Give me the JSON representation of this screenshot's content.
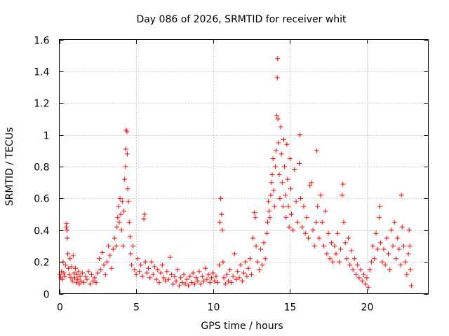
{
  "chart_data": {
    "type": "scatter",
    "title": "Day 086 of 2026, SRMTID for receiver whit",
    "xlabel": "GPS time / hours",
    "ylabel": "SRMTID / TECUs",
    "xlim": [
      0,
      24
    ],
    "ylim": [
      0,
      1.6
    ],
    "xticks": [
      0,
      5,
      10,
      15,
      20
    ],
    "xtick_labels": [
      "0",
      "5",
      "10",
      "15",
      "20"
    ],
    "yticks": [
      0,
      0.2,
      0.4,
      0.6,
      0.8,
      1,
      1.2,
      1.4,
      1.6
    ],
    "ytick_labels": [
      "0",
      "0.2",
      "0.4",
      "0.6",
      "0.8",
      "1",
      "1.2",
      "1.4",
      "1.6"
    ],
    "grid": true,
    "marker": "+",
    "color": "#ff0000",
    "series": [
      {
        "name": "SRMTID",
        "points": [
          [
            0.05,
            0.12
          ],
          [
            0.1,
            0.1
          ],
          [
            0.15,
            0.14
          ],
          [
            0.2,
            0.09
          ],
          [
            0.25,
            0.2
          ],
          [
            0.3,
            0.13
          ],
          [
            0.35,
            0.11
          ],
          [
            0.4,
            0.18
          ],
          [
            0.45,
            0.42
          ],
          [
            0.48,
            0.44
          ],
          [
            0.5,
            0.4
          ],
          [
            0.52,
            0.35
          ],
          [
            0.55,
            0.25
          ],
          [
            0.6,
            0.16
          ],
          [
            0.65,
            0.12
          ],
          [
            0.7,
            0.22
          ],
          [
            0.75,
            0.1
          ],
          [
            0.8,
            0.17
          ],
          [
            0.85,
            0.08
          ],
          [
            0.9,
            0.24
          ],
          [
            0.95,
            0.13
          ],
          [
            1.0,
            0.1
          ],
          [
            1.05,
            0.16
          ],
          [
            1.1,
            0.07
          ],
          [
            1.15,
            0.12
          ],
          [
            1.2,
            0.09
          ],
          [
            1.25,
            0.14
          ],
          [
            1.3,
            0.06
          ],
          [
            1.35,
            0.11
          ],
          [
            1.4,
            0.08
          ],
          [
            1.5,
            0.13
          ],
          [
            1.6,
            0.07
          ],
          [
            1.7,
            0.11
          ],
          [
            1.8,
            0.09
          ],
          [
            1.9,
            0.14
          ],
          [
            2.0,
            0.06
          ],
          [
            2.1,
            0.12
          ],
          [
            2.2,
            0.08
          ],
          [
            2.3,
            0.1
          ],
          [
            2.4,
            0.07
          ],
          [
            2.5,
            0.13
          ],
          [
            2.6,
            0.22
          ],
          [
            2.7,
            0.15
          ],
          [
            2.8,
            0.26
          ],
          [
            2.9,
            0.18
          ],
          [
            3.0,
            0.12
          ],
          [
            3.1,
            0.2
          ],
          [
            3.2,
            0.3
          ],
          [
            3.3,
            0.24
          ],
          [
            3.4,
            0.16
          ],
          [
            3.5,
            0.28
          ],
          [
            3.6,
            0.35
          ],
          [
            3.7,
            0.3
          ],
          [
            3.75,
            0.42
          ],
          [
            3.8,
            0.48
          ],
          [
            3.85,
            0.55
          ],
          [
            3.9,
            0.45
          ],
          [
            3.95,
            0.6
          ],
          [
            4.0,
            0.5
          ],
          [
            4.05,
            0.4
          ],
          [
            4.1,
            0.58
          ],
          [
            4.15,
            0.3
          ],
          [
            4.2,
            0.52
          ],
          [
            4.25,
            0.72
          ],
          [
            4.3,
            0.8
          ],
          [
            4.32,
            0.91
          ],
          [
            4.35,
            1.03
          ],
          [
            4.4,
            1.02
          ],
          [
            4.42,
            0.88
          ],
          [
            4.45,
            0.66
          ],
          [
            4.5,
            0.58
          ],
          [
            4.55,
            0.45
          ],
          [
            4.6,
            0.36
          ],
          [
            4.65,
            0.25
          ],
          [
            4.7,
            0.18
          ],
          [
            4.8,
            0.3
          ],
          [
            4.9,
            0.15
          ],
          [
            5.0,
            0.12
          ],
          [
            5.1,
            0.22
          ],
          [
            5.2,
            0.14
          ],
          [
            5.3,
            0.18
          ],
          [
            5.4,
            0.11
          ],
          [
            5.5,
            0.47
          ],
          [
            5.55,
            0.5
          ],
          [
            5.6,
            0.2
          ],
          [
            5.7,
            0.13
          ],
          [
            5.8,
            0.16
          ],
          [
            5.9,
            0.1
          ],
          [
            6.0,
            0.2
          ],
          [
            6.1,
            0.12
          ],
          [
            6.2,
            0.17
          ],
          [
            6.3,
            0.09
          ],
          [
            6.4,
            0.15
          ],
          [
            6.5,
            0.07
          ],
          [
            6.6,
            0.13
          ],
          [
            6.7,
            0.18
          ],
          [
            6.8,
            0.1
          ],
          [
            6.9,
            0.08
          ],
          [
            7.0,
            0.14
          ],
          [
            7.1,
            0.09
          ],
          [
            7.2,
            0.23
          ],
          [
            7.3,
            0.12
          ],
          [
            7.4,
            0.06
          ],
          [
            7.5,
            0.11
          ],
          [
            7.6,
            0.08
          ],
          [
            7.7,
            0.15
          ],
          [
            7.8,
            0.05
          ],
          [
            7.9,
            0.1
          ],
          [
            8.0,
            0.07
          ],
          [
            8.1,
            0.12
          ],
          [
            8.2,
            0.06
          ],
          [
            8.3,
            0.09
          ],
          [
            8.4,
            0.05
          ],
          [
            8.5,
            0.11
          ],
          [
            8.6,
            0.07
          ],
          [
            8.7,
            0.13
          ],
          [
            8.8,
            0.06
          ],
          [
            8.9,
            0.1
          ],
          [
            9.0,
            0.08
          ],
          [
            9.1,
            0.14
          ],
          [
            9.2,
            0.06
          ],
          [
            9.3,
            0.11
          ],
          [
            9.4,
            0.08
          ],
          [
            9.5,
            0.16
          ],
          [
            9.6,
            0.09
          ],
          [
            9.7,
            0.12
          ],
          [
            9.8,
            0.07
          ],
          [
            9.9,
            0.1
          ],
          [
            10.0,
            0.13
          ],
          [
            10.1,
            0.08
          ],
          [
            10.2,
            0.11
          ],
          [
            10.3,
            0.07
          ],
          [
            10.4,
            0.18
          ],
          [
            10.45,
            0.45
          ],
          [
            10.5,
            0.6
          ],
          [
            10.55,
            0.5
          ],
          [
            10.6,
            0.4
          ],
          [
            10.65,
            0.2
          ],
          [
            10.7,
            0.1
          ],
          [
            10.8,
            0.06
          ],
          [
            10.9,
            0.12
          ],
          [
            11.0,
            0.08
          ],
          [
            11.1,
            0.15
          ],
          [
            11.2,
            0.07
          ],
          [
            11.3,
            0.11
          ],
          [
            11.4,
            0.25
          ],
          [
            11.5,
            0.09
          ],
          [
            11.6,
            0.14
          ],
          [
            11.7,
            0.1
          ],
          [
            11.8,
            0.18
          ],
          [
            11.9,
            0.08
          ],
          [
            12.0,
            0.13
          ],
          [
            12.1,
            0.2
          ],
          [
            12.2,
            0.11
          ],
          [
            12.3,
            0.16
          ],
          [
            12.4,
            0.22
          ],
          [
            12.5,
            0.12
          ],
          [
            12.6,
            0.35
          ],
          [
            12.7,
            0.51
          ],
          [
            12.75,
            0.48
          ],
          [
            12.8,
            0.3
          ],
          [
            12.9,
            0.2
          ],
          [
            13.0,
            0.15
          ],
          [
            13.1,
            0.28
          ],
          [
            13.2,
            0.18
          ],
          [
            13.3,
            0.32
          ],
          [
            13.4,
            0.22
          ],
          [
            13.5,
            0.38
          ],
          [
            13.55,
            0.45
          ],
          [
            13.6,
            0.58
          ],
          [
            13.65,
            0.52
          ],
          [
            13.7,
            0.48
          ],
          [
            13.75,
            0.62
          ],
          [
            13.8,
            0.7
          ],
          [
            13.85,
            0.75
          ],
          [
            13.9,
            0.85
          ],
          [
            13.95,
            0.65
          ],
          [
            14.0,
            0.55
          ],
          [
            14.05,
            0.8
          ],
          [
            14.1,
            0.9
          ],
          [
            14.15,
            1.12
          ],
          [
            14.18,
            1.36
          ],
          [
            14.2,
            1.48
          ],
          [
            14.22,
            1.1
          ],
          [
            14.25,
            0.95
          ],
          [
            14.3,
            0.75
          ],
          [
            14.35,
            0.6
          ],
          [
            14.4,
            1.05
          ],
          [
            14.45,
            0.88
          ],
          [
            14.5,
            0.7
          ],
          [
            14.55,
            0.55
          ],
          [
            14.6,
            0.97
          ],
          [
            14.65,
            0.8
          ],
          [
            14.7,
            0.62
          ],
          [
            14.75,
            0.48
          ],
          [
            14.8,
            0.94
          ],
          [
            14.85,
            0.72
          ],
          [
            14.9,
            0.55
          ],
          [
            14.95,
            0.42
          ],
          [
            15.0,
            0.85
          ],
          [
            15.05,
            0.66
          ],
          [
            15.1,
            0.5
          ],
          [
            15.2,
            0.4
          ],
          [
            15.3,
            0.78
          ],
          [
            15.4,
            0.58
          ],
          [
            15.5,
            0.45
          ],
          [
            15.6,
            0.82
          ],
          [
            15.65,
            1.0
          ],
          [
            15.7,
            0.6
          ],
          [
            15.8,
            0.42
          ],
          [
            15.9,
            0.55
          ],
          [
            16.0,
            0.38
          ],
          [
            16.1,
            0.48
          ],
          [
            16.2,
            0.35
          ],
          [
            16.3,
            0.68
          ],
          [
            16.4,
            0.7
          ],
          [
            16.5,
            0.4
          ],
          [
            16.6,
            0.3
          ],
          [
            16.7,
            0.45
          ],
          [
            16.75,
            0.9
          ],
          [
            16.8,
            0.55
          ],
          [
            16.9,
            0.35
          ],
          [
            17.0,
            0.62
          ],
          [
            17.1,
            0.45
          ],
          [
            17.2,
            0.3
          ],
          [
            17.3,
            0.52
          ],
          [
            17.4,
            0.25
          ],
          [
            17.5,
            0.38
          ],
          [
            17.6,
            0.22
          ],
          [
            17.7,
            0.32
          ],
          [
            17.8,
            0.2
          ],
          [
            17.9,
            0.3
          ],
          [
            18.0,
            0.25
          ],
          [
            18.1,
            0.38
          ],
          [
            18.2,
            0.2
          ],
          [
            18.3,
            0.28
          ],
          [
            18.4,
            0.62
          ],
          [
            18.45,
            0.69
          ],
          [
            18.5,
            0.45
          ],
          [
            18.6,
            0.32
          ],
          [
            18.7,
            0.22
          ],
          [
            18.8,
            0.35
          ],
          [
            18.9,
            0.18
          ],
          [
            19.0,
            0.27
          ],
          [
            19.1,
            0.15
          ],
          [
            19.2,
            0.22
          ],
          [
            19.3,
            0.12
          ],
          [
            19.4,
            0.18
          ],
          [
            19.5,
            0.1
          ],
          [
            19.6,
            0.15
          ],
          [
            19.7,
            0.08
          ],
          [
            19.8,
            0.12
          ],
          [
            19.9,
            0.06
          ],
          [
            20.0,
            0.1
          ],
          [
            20.1,
            0.04
          ],
          [
            20.2,
            0.15
          ],
          [
            20.3,
            0.2
          ],
          [
            20.4,
            0.3
          ],
          [
            20.5,
            0.22
          ],
          [
            20.6,
            0.38
          ],
          [
            20.7,
            0.28
          ],
          [
            20.8,
            0.48
          ],
          [
            20.85,
            0.55
          ],
          [
            20.9,
            0.32
          ],
          [
            21.0,
            0.2
          ],
          [
            21.1,
            0.28
          ],
          [
            21.2,
            0.18
          ],
          [
            21.3,
            0.35
          ],
          [
            21.4,
            0.25
          ],
          [
            21.5,
            0.15
          ],
          [
            21.6,
            0.4
          ],
          [
            21.7,
            0.3
          ],
          [
            21.8,
            0.45
          ],
          [
            21.9,
            0.22
          ],
          [
            22.0,
            0.35
          ],
          [
            22.1,
            0.28
          ],
          [
            22.2,
            0.18
          ],
          [
            22.25,
            0.62
          ],
          [
            22.3,
            0.42
          ],
          [
            22.4,
            0.3
          ],
          [
            22.5,
            0.2
          ],
          [
            22.6,
            0.12
          ],
          [
            22.7,
            0.25
          ],
          [
            22.75,
            0.4
          ],
          [
            22.8,
            0.3
          ],
          [
            22.85,
            0.15
          ],
          [
            22.9,
            0.05
          ]
        ]
      }
    ]
  }
}
